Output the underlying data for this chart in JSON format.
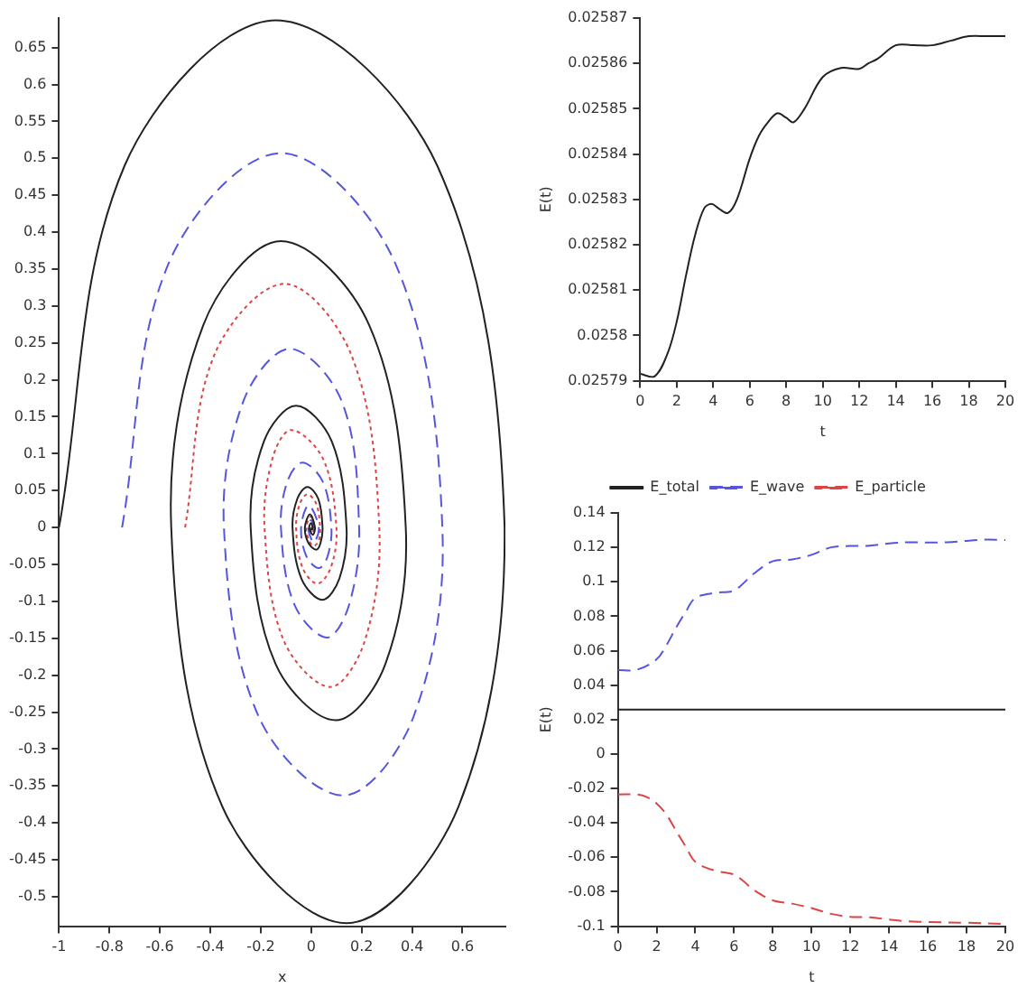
{
  "chart_data": [
    {
      "type": "line",
      "xlabel": "x",
      "xlim": [
        -1,
        0.77
      ],
      "ylim": [
        -0.54,
        0.69
      ],
      "xticks": [
        -1,
        -0.8,
        -0.6,
        -0.4,
        -0.2,
        0,
        0.2,
        0.4,
        0.6
      ],
      "yticks": [
        -0.5,
        -0.45,
        -0.4,
        -0.35,
        -0.3,
        -0.25,
        -0.2,
        -0.15,
        -0.1,
        -0.05,
        0,
        0.05,
        0.1,
        0.15,
        0.2,
        0.25,
        0.3,
        0.35,
        0.4,
        0.45,
        0.5,
        0.55,
        0.6,
        0.65
      ],
      "grid": false,
      "legend": false,
      "marker": "none",
      "series": [
        {
          "color": "#222222",
          "line_style": "solid",
          "x": [
            -1,
            -0.74,
            -0.14,
            0.5,
            0.767,
            0.583,
            0.14,
            -0.351,
            -0.555,
            -0.428,
            -0.12,
            0.23,
            0.375,
            0.294,
            0.097,
            -0.141,
            -0.24,
            -0.187,
            -0.06,
            0.081,
            0.14,
            0.112,
            0.044,
            -0.039,
            -0.074,
            -0.055,
            -0.015,
            0.028,
            0.045,
            0.037,
            0.02,
            -0.011,
            -0.025,
            -0.005,
            0.015,
            0.006,
            -0.008,
            0,
            0.005,
            0.002,
            0
          ],
          "values": [
            0,
            0.49,
            0.687,
            0.49,
            0,
            -0.379,
            -0.536,
            -0.379,
            0,
            0.274,
            0.388,
            0.274,
            0,
            -0.185,
            -0.261,
            -0.185,
            0,
            0.117,
            0.165,
            0.117,
            0,
            -0.069,
            -0.098,
            -0.069,
            0,
            0.039,
            0.055,
            0.039,
            0,
            -0.021,
            -0.03,
            -0.021,
            0,
            0.018,
            0,
            -0.01,
            0,
            0.006,
            0,
            -0.003,
            0
          ]
        },
        {
          "color": "#5555dd",
          "line_style": "dashed",
          "x": [
            -0.75,
            -0.565,
            -0.12,
            0.333,
            0.52,
            0.405,
            0.127,
            -0.207,
            -0.346,
            -0.269,
            -0.085,
            0.121,
            0.19,
            0.15,
            0.063,
            -0.066,
            -0.12,
            -0.095,
            -0.035,
            0.046,
            0.08,
            0.065,
            0.03,
            -0.019,
            -0.04,
            -0.01,
            0.03,
            0.01,
            -0.013,
            0,
            0.01,
            0.003,
            0
          ],
          "values": [
            0,
            0.358,
            0.507,
            0.358,
            0,
            -0.257,
            -0.363,
            -0.257,
            0,
            0.171,
            0.242,
            0.171,
            0,
            -0.105,
            -0.149,
            -0.105,
            0,
            0.062,
            0.088,
            0.062,
            0,
            -0.039,
            -0.055,
            -0.039,
            0,
            0.03,
            0,
            -0.02,
            0,
            0.01,
            0,
            -0.006,
            0
          ]
        },
        {
          "color": "#dd4444",
          "line_style": "dotted",
          "x": [
            -0.5,
            -0.385,
            -0.106,
            0.16,
            0.27,
            0.213,
            0.076,
            -0.109,
            -0.185,
            -0.154,
            -0.08,
            0.047,
            0.1,
            0.078,
            0.024,
            -0.035,
            -0.06,
            -0.045,
            -0.015,
            0.02,
            0.035,
            0.03,
            0.01,
            -0.008,
            -0.02,
            0,
            0.012,
            0.004,
            -0.006,
            0
          ],
          "values": [
            0,
            0.233,
            0.33,
            0.233,
            0,
            -0.153,
            -0.216,
            -0.153,
            0,
            0.093,
            0.132,
            0.093,
            0,
            -0.054,
            -0.076,
            -0.054,
            0,
            0.032,
            0.045,
            0.032,
            0,
            -0.018,
            -0.025,
            -0.018,
            0,
            0.015,
            0,
            -0.008,
            0,
            0
          ]
        }
      ]
    },
    {
      "type": "line",
      "xlabel": "t",
      "ylabel": "E(t)",
      "xlim": [
        0,
        20
      ],
      "ylim": [
        0.02579,
        0.02587
      ],
      "xticks": [
        0,
        2,
        4,
        6,
        8,
        10,
        12,
        14,
        16,
        18,
        20
      ],
      "yticks": [
        0.02579,
        0.0258,
        0.02581,
        0.02582,
        0.02583,
        0.02584,
        0.02585,
        0.02586,
        0.02587
      ],
      "grid": false,
      "legend": false,
      "marker": "none",
      "series": [
        {
          "color": "#222222",
          "line_style": "solid",
          "x": [
            0,
            0.8,
            1.5,
            2,
            2.5,
            3,
            3.5,
            3.9,
            4.3,
            4.8,
            5.3,
            6,
            6.5,
            7,
            7.5,
            8,
            8.4,
            9,
            10,
            11,
            12,
            12.5,
            13,
            14,
            15,
            16,
            17,
            18,
            19,
            20
          ],
          "values": [
            0.0257915,
            0.025791,
            0.025796,
            0.025803,
            0.025813,
            0.025822,
            0.025828,
            0.025829,
            0.025828,
            0.025827,
            0.02583,
            0.025839,
            0.025844,
            0.025847,
            0.025849,
            0.025848,
            0.025847,
            0.02585,
            0.025857,
            0.025859,
            0.0258588,
            0.02586,
            0.025861,
            0.025864,
            0.025864,
            0.025864,
            0.025865,
            0.025866,
            0.025866,
            0.025866
          ]
        }
      ]
    },
    {
      "type": "line",
      "xlabel": "t",
      "ylabel": "E(t)",
      "xlim": [
        0,
        20
      ],
      "ylim": [
        -0.1,
        0.14
      ],
      "xticks": [
        0,
        2,
        4,
        6,
        8,
        10,
        12,
        14,
        16,
        18,
        20
      ],
      "yticks": [
        -0.1,
        -0.08,
        -0.06,
        -0.04,
        -0.02,
        0,
        0.02,
        0.04,
        0.06,
        0.08,
        0.1,
        0.12,
        0.14
      ],
      "grid": false,
      "legend": "top",
      "marker": "none",
      "series": [
        {
          "name": "E_total",
          "color": "#222222",
          "line_style": "solid",
          "x": [
            0,
            20
          ],
          "values": [
            0.0258,
            0.0258
          ]
        },
        {
          "name": "E_wave",
          "color": "#5555dd",
          "line_style": "dashed",
          "x": [
            0,
            1,
            2,
            2.5,
            3,
            3.5,
            4,
            5,
            6,
            7,
            8,
            9,
            10,
            11,
            12,
            13,
            14,
            15,
            16,
            17,
            18,
            19,
            20
          ],
          "values": [
            0.0487,
            0.049,
            0.055,
            0.063,
            0.0733,
            0.0825,
            0.0906,
            0.0936,
            0.095,
            0.1046,
            0.112,
            0.113,
            0.1157,
            0.12,
            0.1208,
            0.121,
            0.1223,
            0.123,
            0.1228,
            0.123,
            0.1238,
            0.1245,
            0.1243
          ]
        },
        {
          "name": "E_particle",
          "color": "#dd4444",
          "line_style": "dashed",
          "x": [
            0,
            1,
            1.5,
            2,
            2.5,
            3,
            3.5,
            4,
            5,
            6,
            6.5,
            7,
            8,
            9,
            10,
            11,
            12,
            13,
            14,
            15,
            16,
            18,
            20
          ],
          "values": [
            -0.0235,
            -0.0235,
            -0.025,
            -0.0287,
            -0.035,
            -0.0445,
            -0.0537,
            -0.0626,
            -0.0677,
            -0.07,
            -0.074,
            -0.0788,
            -0.085,
            -0.0869,
            -0.0895,
            -0.0928,
            -0.0946,
            -0.0948,
            -0.0961,
            -0.0972,
            -0.0976,
            -0.098,
            -0.0987
          ]
        }
      ]
    }
  ]
}
